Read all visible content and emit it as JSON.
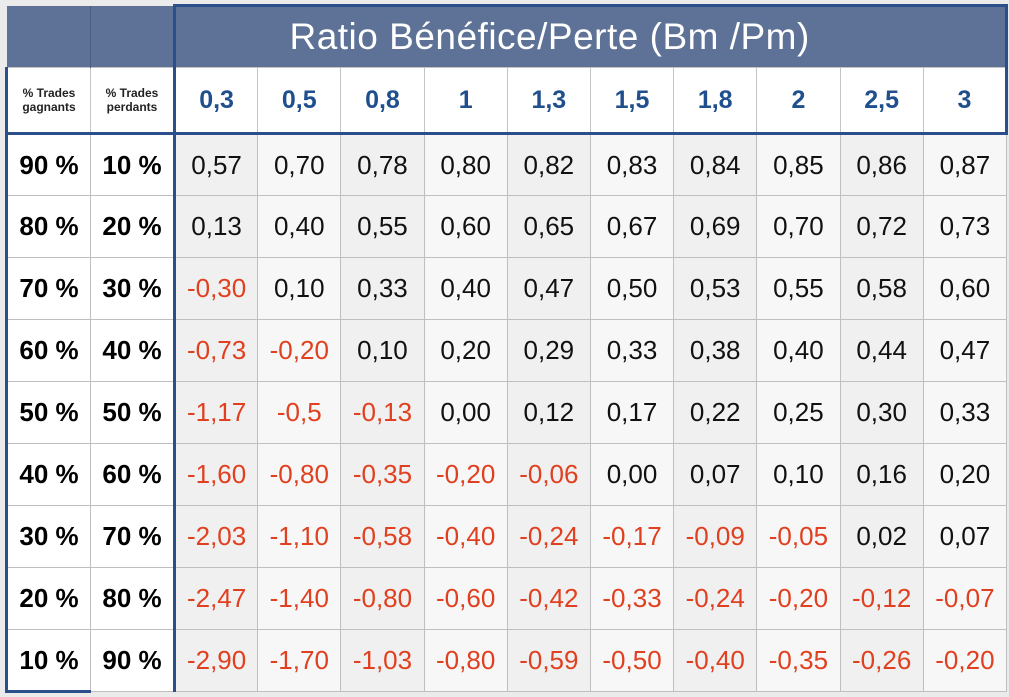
{
  "chart_data": {
    "type": "table",
    "title": "Ratio Bénéfice/Perte (Bm /Pm)",
    "row_headers": {
      "col1_label": "% Trades gagnants",
      "col2_label": "% Trades perdants"
    },
    "columns": [
      "0,3",
      "0,5",
      "0,8",
      "1",
      "1,3",
      "1,5",
      "1,8",
      "2",
      "2,5",
      "3"
    ],
    "rows": [
      {
        "gagnants": "90 %",
        "perdants": "10 %",
        "values": [
          "0,57",
          "0,70",
          "0,78",
          "0,80",
          "0,82",
          "0,83",
          "0,84",
          "0,85",
          "0,86",
          "0,87"
        ]
      },
      {
        "gagnants": "80 %",
        "perdants": "20 %",
        "values": [
          "0,13",
          "0,40",
          "0,55",
          "0,60",
          "0,65",
          "0,67",
          "0,69",
          "0,70",
          "0,72",
          "0,73"
        ]
      },
      {
        "gagnants": "70 %",
        "perdants": "30 %",
        "values": [
          "-0,30",
          "0,10",
          "0,33",
          "0,40",
          "0,47",
          "0,50",
          "0,53",
          "0,55",
          "0,58",
          "0,60"
        ]
      },
      {
        "gagnants": "60 %",
        "perdants": "40 %",
        "values": [
          "-0,73",
          "-0,20",
          "0,10",
          "0,20",
          "0,29",
          "0,33",
          "0,38",
          "0,40",
          "0,44",
          "0,47"
        ]
      },
      {
        "gagnants": "50 %",
        "perdants": "50 %",
        "values": [
          "-1,17",
          "-0,5",
          "-0,13",
          "0,00",
          "0,12",
          "0,17",
          "0,22",
          "0,25",
          "0,30",
          "0,33"
        ]
      },
      {
        "gagnants": "40 %",
        "perdants": "60 %",
        "values": [
          "-1,60",
          "-0,80",
          "-0,35",
          "-0,20",
          "-0,06",
          "0,00",
          "0,07",
          "0,10",
          "0,16",
          "0,20"
        ]
      },
      {
        "gagnants": "30 %",
        "perdants": "70 %",
        "values": [
          "-2,03",
          "-1,10",
          "-0,58",
          "-0,40",
          "-0,24",
          "-0,17",
          "-0,09",
          "-0,05",
          "0,02",
          "0,07"
        ]
      },
      {
        "gagnants": "20 %",
        "perdants": "80 %",
        "values": [
          "-2,47",
          "-1,40",
          "-0,80",
          "-0,60",
          "-0,42",
          "-0,33",
          "-0,24",
          "-0,20",
          "-0,12",
          "-0,07"
        ]
      },
      {
        "gagnants": "10 %",
        "perdants": "90 %",
        "values": [
          "-2,90",
          "-1,70",
          "-1,03",
          "-0,80",
          "-0,59",
          "-0,50",
          "-0,40",
          "-0,35",
          "-0,26",
          "-0,20"
        ]
      }
    ]
  },
  "colors": {
    "title_bg": "#5d7296",
    "header_text": "#1f4f8c",
    "negative": "#e0401f",
    "positive": "#111111",
    "frame": "#2b4f8a"
  }
}
